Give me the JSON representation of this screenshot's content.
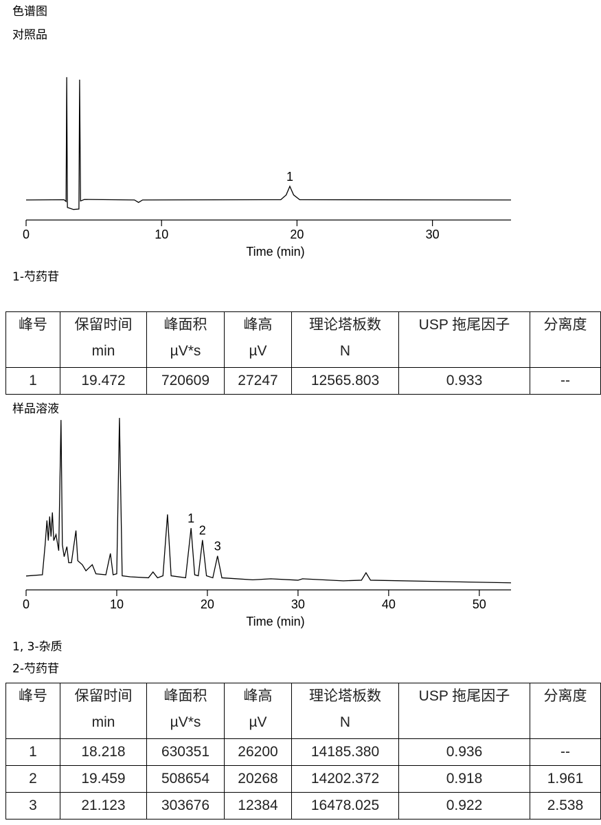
{
  "heading": "色谱图",
  "chart_data": [
    {
      "type": "line",
      "title": "对照品",
      "xlabel": "Time (min)",
      "color": "#000000",
      "xlim": [
        0,
        35.8
      ],
      "xticks": [
        0,
        10,
        20,
        30
      ],
      "ylim": [
        -40000,
        255000
      ],
      "x": [
        0,
        2.8,
        2.95,
        3.0,
        3.05,
        3.5,
        3.9,
        3.95,
        4.02,
        4.3,
        8,
        8.3,
        8.6,
        18.8,
        19.2,
        19.47,
        19.75,
        20.2,
        35.8
      ],
      "values": [
        0,
        500,
        -3000,
        245000,
        -15000,
        -19000,
        -18000,
        240000,
        -2000,
        1000,
        0,
        -5000,
        0,
        500,
        10000,
        27247,
        10000,
        500,
        0
      ],
      "annotations": [
        {
          "text": "1",
          "x": 19.47,
          "y": 27247
        }
      ],
      "notes": [
        "1-芍药苷"
      ]
    },
    {
      "type": "line",
      "title": "样品溶液",
      "xlabel": "Time (min)",
      "color": "#000000",
      "xlim": [
        0,
        53.5
      ],
      "xticks": [
        0,
        10,
        20,
        30,
        40,
        50
      ],
      "ylim": [
        -4500,
        82000
      ],
      "x": [
        0,
        1.8,
        2.1,
        2.3,
        2.45,
        2.6,
        2.75,
        2.9,
        3.05,
        3.3,
        3.6,
        3.85,
        4.0,
        4.2,
        4.5,
        4.7,
        5.0,
        5.5,
        5.7,
        6.2,
        6.6,
        7.3,
        7.7,
        8.8,
        9.3,
        9.6,
        10.0,
        10.3,
        10.6,
        11.5,
        13.5,
        14.0,
        14.5,
        15.1,
        15.6,
        16.0,
        17.6,
        18.2,
        18.6,
        19.0,
        19.46,
        19.9,
        20.6,
        21.12,
        21.6,
        25,
        27,
        30,
        30.5,
        35,
        37.0,
        37.5,
        38.0,
        53.5
      ],
      "values": [
        2400,
        3000,
        18000,
        30000,
        20000,
        32000,
        22000,
        34000,
        20000,
        23000,
        15000,
        80000,
        18000,
        12000,
        17000,
        9000,
        9000,
        25000,
        10000,
        8000,
        5000,
        8000,
        3500,
        3000,
        13600,
        3000,
        3500,
        81000,
        2500,
        2000,
        1500,
        4400,
        1500,
        2500,
        33000,
        2500,
        1500,
        26200,
        3000,
        2500,
        20268,
        2500,
        1500,
        12384,
        1500,
        500,
        1000,
        300,
        1000,
        0,
        300,
        4000,
        300,
        -1000
      ],
      "annotations": [
        {
          "text": "1",
          "x": 18.2,
          "y": 26200
        },
        {
          "text": "2",
          "x": 19.46,
          "y": 20268
        },
        {
          "text": "3",
          "x": 21.12,
          "y": 12384
        }
      ],
      "notes": [
        "1, 3-杂质",
        "2-芍药苷"
      ]
    }
  ],
  "tables": [
    {
      "header": [
        [
          "峰号"
        ],
        [
          "保留时间",
          "min"
        ],
        [
          "峰面积",
          "µV*s"
        ],
        [
          "峰高",
          "µV"
        ],
        [
          "理论塔板数",
          "N"
        ],
        [
          "USP 拖尾因子"
        ],
        [
          "分离度"
        ]
      ],
      "rows": [
        [
          "1",
          "19.472",
          "720609",
          "27247",
          "12565.803",
          "0.933",
          "--"
        ]
      ]
    },
    {
      "header": [
        [
          "峰号"
        ],
        [
          "保留时间",
          "min"
        ],
        [
          "峰面积",
          "µV*s"
        ],
        [
          "峰高",
          "µV"
        ],
        [
          "理论塔板数",
          "N"
        ],
        [
          "USP 拖尾因子"
        ],
        [
          "分离度"
        ]
      ],
      "rows": [
        [
          "1",
          "18.218",
          "630351",
          "26200",
          "14185.380",
          "0.936",
          "--"
        ],
        [
          "2",
          "19.459",
          "508654",
          "20268",
          "14202.372",
          "0.918",
          "1.961"
        ],
        [
          "3",
          "21.123",
          "303676",
          "12384",
          "16478.025",
          "0.922",
          "2.538"
        ]
      ]
    }
  ]
}
